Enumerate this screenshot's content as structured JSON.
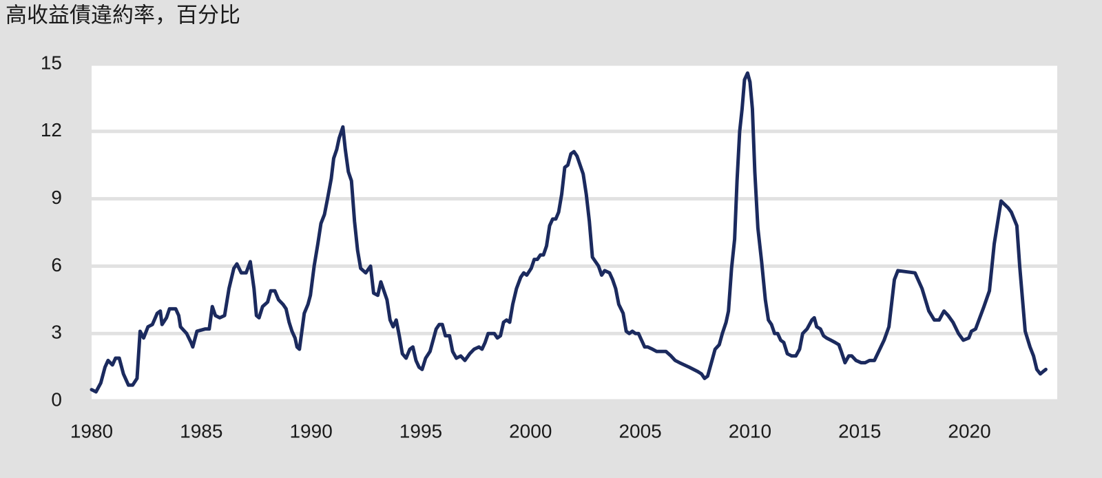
{
  "chart_data": {
    "type": "line",
    "title": "高收益債違約率，百分比",
    "color": "#1b2a5e",
    "grid": true,
    "xlim": [
      1980,
      2024
    ],
    "ylim": [
      0,
      15
    ],
    "xticks": [
      1980,
      1985,
      1990,
      1995,
      2000,
      2005,
      2010,
      2015,
      2020
    ],
    "yticks": [
      0,
      3,
      6,
      9,
      12,
      15
    ],
    "x": [
      1980,
      1980.2,
      1980.42,
      1980.61,
      1980.75,
      1980.95,
      1981.09,
      1981.26,
      1981.45,
      1981.68,
      1981.87,
      1982.07,
      1982.21,
      1982.37,
      1982.57,
      1982.77,
      1982.99,
      1983.13,
      1983.21,
      1983.41,
      1983.55,
      1983.83,
      1983.97,
      1984.05,
      1984.33,
      1984.53,
      1984.61,
      1984.8,
      1985.17,
      1985.36,
      1985.5,
      1985.64,
      1985.84,
      1986.06,
      1986.26,
      1986.48,
      1986.62,
      1986.82,
      1987.04,
      1987.23,
      1987.4,
      1987.51,
      1987.63,
      1987.79,
      1988.02,
      1988.16,
      1988.35,
      1988.52,
      1988.72,
      1988.86,
      1989.0,
      1989.13,
      1989.27,
      1989.36,
      1989.47,
      1989.69,
      1989.86,
      1989.97,
      1990.14,
      1990.31,
      1990.45,
      1990.61,
      1990.75,
      1990.92,
      1991.03,
      1991.17,
      1991.28,
      1991.45,
      1991.56,
      1991.7,
      1991.84,
      1991.98,
      1992.12,
      1992.26,
      1992.49,
      1992.71,
      1992.85,
      1993.04,
      1993.18,
      1993.32,
      1993.46,
      1993.6,
      1993.74,
      1993.88,
      1994.02,
      1994.16,
      1994.33,
      1994.5,
      1994.64,
      1994.78,
      1994.92,
      1995.06,
      1995.22,
      1995.42,
      1995.56,
      1995.7,
      1995.84,
      1995.98,
      1996.12,
      1996.31,
      1996.45,
      1996.62,
      1996.82,
      1997.01,
      1997.23,
      1997.43,
      1997.65,
      1997.79,
      1997.93,
      1998.07,
      1998.35,
      1998.49,
      1998.63,
      1998.77,
      1998.91,
      1999.05,
      1999.19,
      1999.36,
      1999.55,
      1999.69,
      1999.83,
      2000.03,
      2000.17,
      2000.31,
      2000.45,
      2000.59,
      2000.73,
      2000.87,
      2001.01,
      2001.15,
      2001.28,
      2001.42,
      2001.56,
      2001.7,
      2001.84,
      2001.98,
      2002.12,
      2002.26,
      2002.4,
      2002.54,
      2002.68,
      2002.82,
      2002.96,
      2003.1,
      2003.24,
      2003.38,
      2003.6,
      2003.74,
      2003.88,
      2004.02,
      2004.22,
      2004.36,
      2004.5,
      2004.64,
      2004.78,
      2004.92,
      2005.06,
      2005.2,
      2005.34,
      2005.56,
      2005.75,
      2005.95,
      2006.17,
      2006.4,
      2006.59,
      2006.79,
      2007.01,
      2007.23,
      2007.43,
      2007.63,
      2007.79,
      2007.93,
      2008.07,
      2008.27,
      2008.41,
      2008.6,
      2008.74,
      2008.91,
      2009.02,
      2009.16,
      2009.3,
      2009.41,
      2009.53,
      2009.64,
      2009.75,
      2009.89,
      2010.0,
      2010.11,
      2010.22,
      2010.36,
      2010.53,
      2010.7,
      2010.84,
      2010.98,
      2011.12,
      2011.26,
      2011.4,
      2011.54,
      2011.7,
      2011.9,
      2012.09,
      2012.26,
      2012.4,
      2012.6,
      2012.82,
      2012.93,
      2013.04,
      2013.21,
      2013.35,
      2013.49,
      2013.69,
      2013.88,
      2014.05,
      2014.16,
      2014.33,
      2014.5,
      2014.64,
      2014.83,
      2015.06,
      2015.25,
      2015.45,
      2015.67,
      2016.11,
      2016.33,
      2016.58,
      2016.74,
      2017.52,
      2017.84,
      2018.15,
      2018.4,
      2018.62,
      2018.84,
      2019.03,
      2019.25,
      2019.5,
      2019.72,
      2019.97,
      2020.09,
      2020.28,
      2020.47,
      2020.66,
      2020.91,
      2021.13,
      2021.44,
      2021.76,
      2021.91,
      2022.16,
      2022.29,
      2022.54,
      2022.76,
      2022.92,
      2023.07,
      2023.23,
      2023.35,
      2023.48
    ],
    "values": [
      0.5,
      0.4,
      0.8,
      1.5,
      1.8,
      1.6,
      1.9,
      1.9,
      1.2,
      0.7,
      0.7,
      1.0,
      3.1,
      2.8,
      3.3,
      3.4,
      3.9,
      4.0,
      3.4,
      3.7,
      4.1,
      4.1,
      3.8,
      3.3,
      3.0,
      2.6,
      2.4,
      3.1,
      3.2,
      3.2,
      4.2,
      3.8,
      3.7,
      3.8,
      5.0,
      5.9,
      6.1,
      5.7,
      5.7,
      6.2,
      5.0,
      3.8,
      3.7,
      4.2,
      4.4,
      4.9,
      4.9,
      4.5,
      4.3,
      4.1,
      3.5,
      3.1,
      2.8,
      2.4,
      2.3,
      3.9,
      4.3,
      4.7,
      6.0,
      7.0,
      7.9,
      8.3,
      9.0,
      9.9,
      10.8,
      11.2,
      11.7,
      12.2,
      11.2,
      10.2,
      9.8,
      8.0,
      6.7,
      5.9,
      5.7,
      6.0,
      4.8,
      4.7,
      5.3,
      4.9,
      4.5,
      3.6,
      3.3,
      3.6,
      2.9,
      2.1,
      1.9,
      2.3,
      2.4,
      1.8,
      1.5,
      1.4,
      1.9,
      2.2,
      2.7,
      3.2,
      3.4,
      3.4,
      2.9,
      2.9,
      2.2,
      1.9,
      2.0,
      1.8,
      2.1,
      2.3,
      2.4,
      2.3,
      2.6,
      3.0,
      3.0,
      2.8,
      2.9,
      3.5,
      3.6,
      3.5,
      4.3,
      5.0,
      5.5,
      5.7,
      5.6,
      5.9,
      6.3,
      6.3,
      6.5,
      6.5,
      6.9,
      7.8,
      8.1,
      8.1,
      8.4,
      9.2,
      10.4,
      10.5,
      11.0,
      11.1,
      10.9,
      10.5,
      10.1,
      9.2,
      8.0,
      6.4,
      6.2,
      6.0,
      5.6,
      5.8,
      5.7,
      5.4,
      5.0,
      4.3,
      3.9,
      3.1,
      3.0,
      3.1,
      3.0,
      3.0,
      2.7,
      2.4,
      2.4,
      2.3,
      2.2,
      2.2,
      2.2,
      2.0,
      1.8,
      1.7,
      1.6,
      1.5,
      1.4,
      1.3,
      1.2,
      1.0,
      1.1,
      1.8,
      2.3,
      2.5,
      3.0,
      3.5,
      4.0,
      5.9,
      7.2,
      9.8,
      12.0,
      13.0,
      14.3,
      14.6,
      14.2,
      13.0,
      10.2,
      7.7,
      6.2,
      4.5,
      3.6,
      3.4,
      3.0,
      3.0,
      2.7,
      2.6,
      2.1,
      2.0,
      2.0,
      2.3,
      3.0,
      3.2,
      3.6,
      3.7,
      3.3,
      3.2,
      2.9,
      2.8,
      2.7,
      2.6,
      2.5,
      2.2,
      1.7,
      2.0,
      2.0,
      1.8,
      1.7,
      1.7,
      1.8,
      1.8,
      2.7,
      3.3,
      5.4,
      5.8,
      5.7,
      5.0,
      4.0,
      3.6,
      3.6,
      4.0,
      3.8,
      3.5,
      3.0,
      2.7,
      2.8,
      3.1,
      3.2,
      3.7,
      4.2,
      4.9,
      7.0,
      8.9,
      8.6,
      8.4,
      7.8,
      6.0,
      3.1,
      2.4,
      2.0,
      1.4,
      1.2,
      1.3,
      1.4
    ]
  }
}
